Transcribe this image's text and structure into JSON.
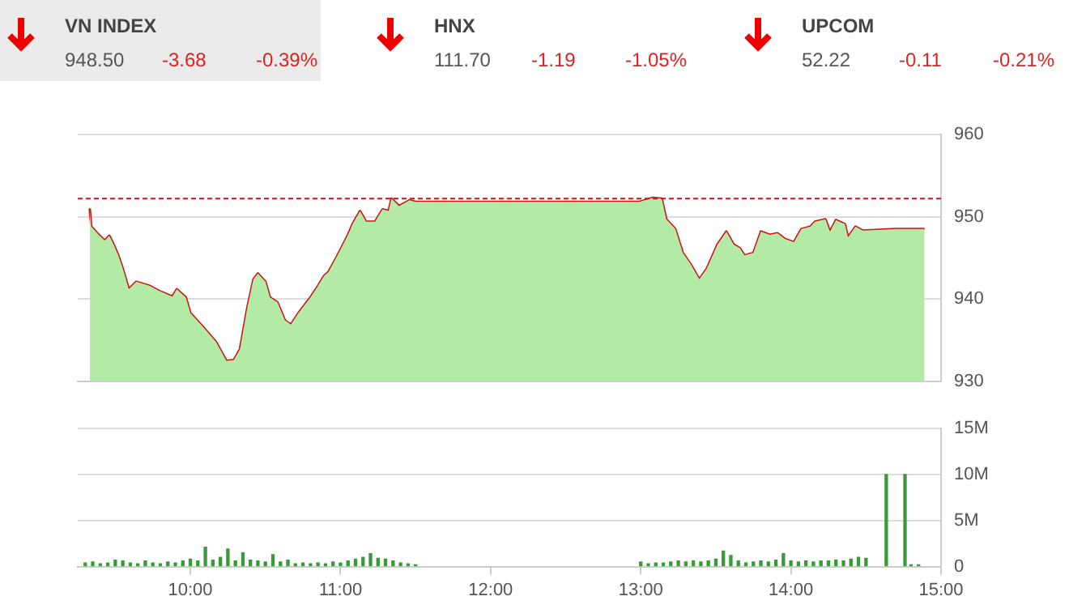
{
  "chart_data": [
    {
      "type": "other",
      "annotations": [
        "VN INDEX",
        "948.50",
        "-3.68",
        "-0.39%",
        "HNX",
        "111.70",
        "-1.19",
        "-1.05%",
        "UPCOM",
        "52.22",
        "-0.11",
        "-0.21%"
      ]
    },
    {
      "type": "area",
      "tick_labels": "y",
      "grid": "y",
      "legend": false,
      "xlim": [
        9.25,
        15
      ],
      "ylim": [
        930,
        960
      ],
      "yticks": [
        930,
        940,
        950,
        960
      ],
      "x": [
        9.33,
        9.34,
        9.39,
        9.43,
        9.46,
        9.49,
        9.52,
        9.55,
        9.59,
        9.64,
        9.73,
        9.79,
        9.88,
        9.91,
        9.97,
        10.0,
        10.08,
        10.17,
        10.24,
        10.29,
        10.33,
        10.38,
        10.42,
        10.45,
        10.5,
        10.53,
        10.58,
        10.63,
        10.67,
        10.72,
        10.8,
        10.85,
        10.89,
        10.92,
        10.98,
        11.05,
        11.08,
        11.13,
        11.17,
        11.23,
        11.28,
        11.32,
        11.34,
        11.39,
        11.46,
        11.5,
        11.75,
        12.0,
        12.25,
        12.5,
        12.75,
        12.99,
        13.08,
        13.14,
        13.17,
        13.23,
        13.28,
        13.33,
        13.39,
        13.44,
        13.51,
        13.57,
        13.62,
        13.66,
        13.69,
        13.75,
        13.8,
        13.86,
        13.91,
        13.96,
        14.02,
        14.07,
        14.13,
        14.16,
        14.23,
        14.26,
        14.3,
        14.36,
        14.38,
        14.43,
        14.48,
        14.7,
        14.89
      ],
      "series": [
        {
          "color": "#b3eba6",
          "values": [
            951.0,
            948.8,
            947.8,
            947.1,
            947.7,
            946.6,
            945.3,
            943.7,
            941.2,
            942.1,
            941.6,
            941.0,
            940.3,
            941.2,
            940.2,
            938.3,
            936.7,
            934.8,
            932.5,
            932.6,
            933.9,
            939.0,
            942.4,
            943.1,
            942.1,
            940.2,
            939.6,
            937.4,
            936.9,
            938.3,
            940.2,
            941.6,
            942.8,
            943.3,
            945.3,
            947.8,
            949.1,
            950.7,
            949.4,
            949.4,
            950.9,
            950.7,
            952.2,
            951.3,
            952.0,
            951.8,
            951.8,
            951.8,
            951.8,
            951.8,
            951.8,
            951.8,
            952.3,
            952.2,
            949.7,
            948.5,
            945.6,
            944.3,
            942.4,
            943.7,
            946.6,
            948.2,
            946.6,
            946.2,
            945.3,
            945.6,
            948.2,
            947.8,
            948.0,
            947.3,
            946.9,
            948.5,
            948.8,
            949.4,
            949.7,
            948.2,
            949.6,
            949.1,
            947.5,
            948.8,
            948.3,
            948.5,
            948.5
          ]
        },
        {
          "type": "line",
          "color": "#cc1111",
          "values": [
            951.0,
            948.8,
            947.8,
            947.1,
            947.7,
            946.6,
            945.3,
            943.7,
            941.2,
            942.1,
            941.6,
            941.0,
            940.3,
            941.2,
            940.2,
            938.3,
            936.7,
            934.8,
            932.5,
            932.6,
            933.9,
            939.0,
            942.4,
            943.1,
            942.1,
            940.2,
            939.6,
            937.4,
            936.9,
            938.3,
            940.2,
            941.6,
            942.8,
            943.3,
            945.3,
            947.8,
            949.1,
            950.7,
            949.4,
            949.4,
            950.9,
            950.7,
            952.2,
            951.3,
            952.0,
            951.8,
            951.8,
            951.8,
            951.8,
            951.8,
            951.8,
            951.8,
            952.3,
            952.2,
            949.7,
            948.5,
            945.6,
            944.3,
            942.4,
            943.7,
            946.6,
            948.2,
            946.6,
            946.2,
            945.3,
            945.6,
            948.2,
            947.8,
            948.0,
            947.3,
            946.9,
            948.5,
            948.8,
            949.4,
            949.7,
            948.2,
            949.6,
            949.1,
            947.5,
            948.8,
            948.3,
            948.5,
            948.5
          ]
        }
      ],
      "ref_lines": [
        {
          "axis": "y",
          "value": 952.2,
          "color": "#cc1111",
          "line_style": "dashed"
        }
      ]
    },
    {
      "type": "bar",
      "grid": "y",
      "legend": false,
      "xlim": [
        9.25,
        15
      ],
      "xticks": [
        {
          "value": 10,
          "label": "10:00"
        },
        {
          "value": 11,
          "label": "11:00"
        },
        {
          "value": 12,
          "label": "12:00"
        },
        {
          "value": 13,
          "label": "13:00"
        },
        {
          "value": 14,
          "label": "14:00"
        },
        {
          "value": 15,
          "label": "15:00"
        }
      ],
      "ylim": [
        0,
        15
      ],
      "yticks": [
        0,
        {
          "value": 5,
          "label": "5M"
        },
        {
          "value": 10,
          "label": "10M"
        },
        {
          "value": 15,
          "label": "15M"
        }
      ],
      "x": [
        9.3,
        9.35,
        9.4,
        9.45,
        9.5,
        9.55,
        9.6,
        9.65,
        9.7,
        9.75,
        9.8,
        9.85,
        9.9,
        9.95,
        10.0,
        10.05,
        10.1,
        10.15,
        10.2,
        10.25,
        10.3,
        10.35,
        10.4,
        10.45,
        10.5,
        10.55,
        10.6,
        10.65,
        10.7,
        10.75,
        10.8,
        10.85,
        10.9,
        10.95,
        11.0,
        11.05,
        11.1,
        11.15,
        11.2,
        11.25,
        11.3,
        11.35,
        11.4,
        11.45,
        11.5,
        13.0,
        13.05,
        13.1,
        13.15,
        13.2,
        13.25,
        13.3,
        13.35,
        13.4,
        13.45,
        13.5,
        13.55,
        13.6,
        13.65,
        13.7,
        13.75,
        13.8,
        13.85,
        13.9,
        13.95,
        14.0,
        14.05,
        14.1,
        14.15,
        14.2,
        14.25,
        14.3,
        14.35,
        14.4,
        14.45,
        14.5,
        14.635,
        14.76,
        14.8,
        14.85
      ],
      "series": [
        {
          "color": "#3a9a3a",
          "values": [
            0.4,
            0.5,
            0.3,
            0.4,
            0.7,
            0.6,
            0.4,
            0.3,
            0.6,
            0.4,
            0.3,
            0.5,
            0.4,
            0.6,
            0.8,
            0.6,
            2.1,
            0.7,
            1.0,
            1.9,
            0.6,
            1.5,
            0.7,
            0.6,
            0.5,
            1.3,
            0.5,
            0.7,
            0.3,
            0.4,
            0.3,
            0.4,
            0.3,
            0.5,
            0.4,
            0.6,
            0.8,
            1.0,
            1.4,
            0.9,
            0.8,
            0.6,
            0.4,
            0.3,
            0.2,
            0.5,
            0.3,
            0.4,
            0.4,
            0.5,
            0.6,
            0.5,
            0.6,
            0.5,
            0.6,
            0.8,
            1.7,
            1.2,
            0.6,
            0.4,
            0.5,
            0.6,
            0.5,
            0.7,
            1.4,
            0.6,
            0.5,
            0.6,
            0.5,
            0.6,
            0.6,
            0.7,
            0.6,
            0.8,
            1.0,
            0.9,
            10,
            10,
            0.2,
            0.2
          ]
        }
      ]
    }
  ]
}
